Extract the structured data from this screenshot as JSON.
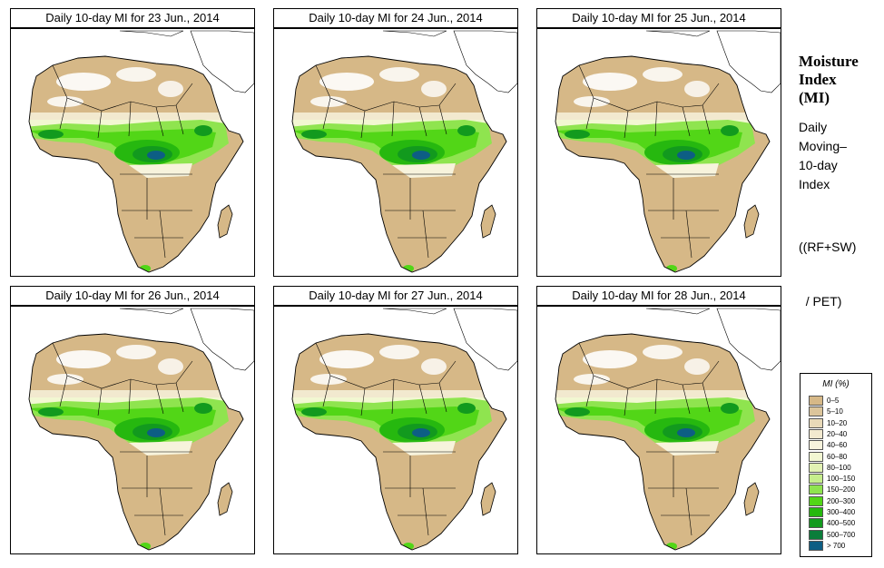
{
  "panels": [
    {
      "title": "Daily 10-day MI for  23 Jun., 2014"
    },
    {
      "title": "Daily 10-day MI for  24 Jun., 2014"
    },
    {
      "title": "Daily 10-day MI for  25 Jun., 2014"
    },
    {
      "title": "Daily 10-day MI for  26 Jun., 2014"
    },
    {
      "title": "Daily 10-day MI for  27 Jun., 2014"
    },
    {
      "title": "Daily 10-day MI for  28 Jun., 2014"
    }
  ],
  "side": {
    "title_lines": [
      "Moisture",
      "Index",
      "(MI)"
    ],
    "desc_lines": [
      "Daily",
      "Moving–",
      "10-day",
      "Index"
    ],
    "formula_lines": [
      "((RF+SW)",
      "  / PET)"
    ]
  },
  "legend": {
    "title": "MI (%)",
    "items": [
      {
        "label": "0–5",
        "color": "#d6b887"
      },
      {
        "label": "5–10",
        "color": "#dcc59b"
      },
      {
        "label": "10–20",
        "color": "#e8d9b8"
      },
      {
        "label": "20–40",
        "color": "#f2e9cf"
      },
      {
        "label": "40–60",
        "color": "#f7f3dc"
      },
      {
        "label": "60–80",
        "color": "#f2f7d2"
      },
      {
        "label": "80–100",
        "color": "#e2f2b3"
      },
      {
        "label": "100–150",
        "color": "#c6ee8c"
      },
      {
        "label": "150–200",
        "color": "#8fe44f"
      },
      {
        "label": "200–300",
        "color": "#52d617"
      },
      {
        "label": "300–400",
        "color": "#26b80f"
      },
      {
        "label": "400–500",
        "color": "#129a1e"
      },
      {
        "label": "500–700",
        "color": "#0b7d3a"
      },
      {
        "label": "> 700",
        "color": "#0d5e84"
      }
    ]
  }
}
